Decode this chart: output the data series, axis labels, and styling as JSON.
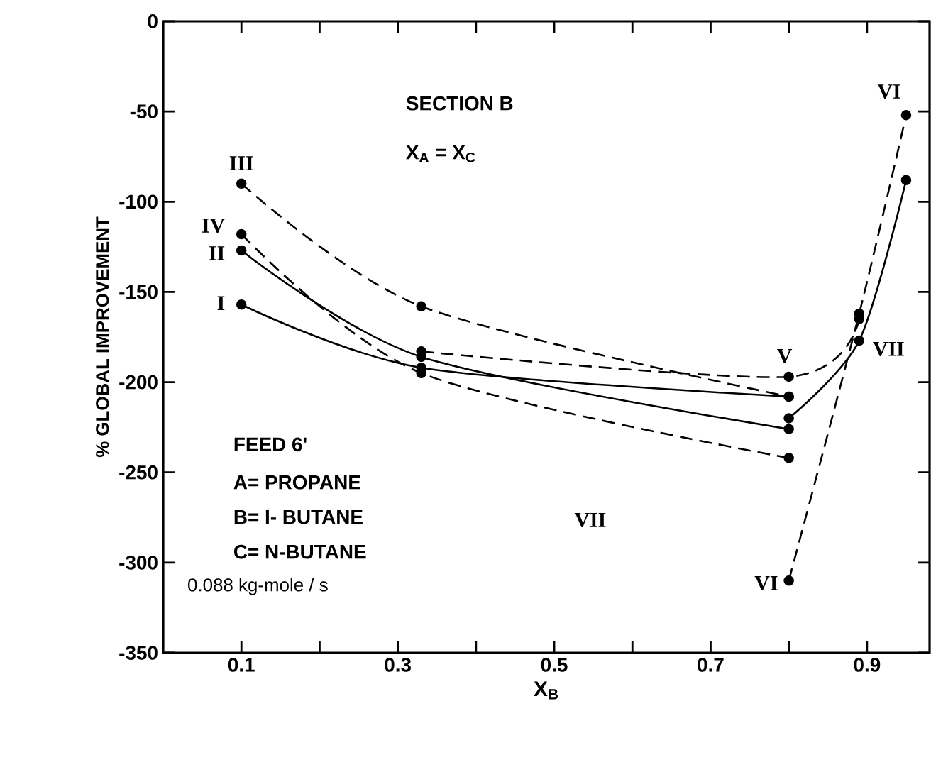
{
  "chart_data": {
    "type": "line",
    "xlabel": "X$_{B}$",
    "ylabel": "% GLOBAL IMPROVEMENT",
    "xlim": [
      0,
      0.98
    ],
    "ylim": [
      -350,
      0
    ],
    "xticks": [
      {
        "value": 0.1,
        "label": "0.1"
      },
      {
        "value": 0.2,
        "label": null
      },
      {
        "value": 0.3,
        "label": "0.3"
      },
      {
        "value": 0.4,
        "label": null
      },
      {
        "value": 0.5,
        "label": "0.5"
      },
      {
        "value": 0.6,
        "label": null
      },
      {
        "value": 0.7,
        "label": "0.7"
      },
      {
        "value": 0.8,
        "label": null
      },
      {
        "value": 0.9,
        "label": "0.9"
      }
    ],
    "yticks": [
      0,
      -50,
      -100,
      -150,
      -200,
      -250,
      -300,
      -350
    ],
    "marker": "circle",
    "grid": false,
    "series": [
      {
        "name": "I",
        "color": "#000000",
        "line_style": "solid",
        "x": [
          0.1,
          0.33,
          0.8
        ],
        "values": [
          -157,
          -192,
          -208
        ]
      },
      {
        "name": "II",
        "color": "#000000",
        "line_style": "solid",
        "x": [
          0.1,
          0.33,
          0.8
        ],
        "values": [
          -127,
          -186,
          -226
        ]
      },
      {
        "name": "III",
        "color": "#000000",
        "line_style": "dashed",
        "x": [
          0.1,
          0.33,
          0.8
        ],
        "values": [
          -90,
          -158,
          -208
        ]
      },
      {
        "name": "IV",
        "color": "#000000",
        "line_style": "dashed",
        "x": [
          0.1,
          0.33,
          0.8
        ],
        "values": [
          -118,
          -195,
          -242
        ]
      },
      {
        "name": "V",
        "color": "#000000",
        "line_style": "dashed",
        "x": [
          0.33,
          0.8,
          0.89
        ],
        "values": [
          -183,
          -197,
          -165
        ]
      },
      {
        "name": "VI",
        "color": "#000000",
        "line_style": "dashed",
        "x": [
          0.8,
          0.89,
          0.95
        ],
        "values": [
          -310,
          -162,
          -52
        ]
      },
      {
        "name": "VII",
        "color": "#000000",
        "line_style": "solid",
        "x": [
          0.8,
          0.89,
          0.95
        ],
        "values": [
          -220,
          -177,
          -88
        ]
      }
    ],
    "annotations": [
      "SECTION B",
      "X$_{A}$ = X$_{C}$",
      "FEED 6'",
      "A= PROPANE",
      "B= I- BUTANE",
      "C= N-BUTANE",
      "0.088 kg-mole / s",
      "VII",
      "VI"
    ]
  }
}
